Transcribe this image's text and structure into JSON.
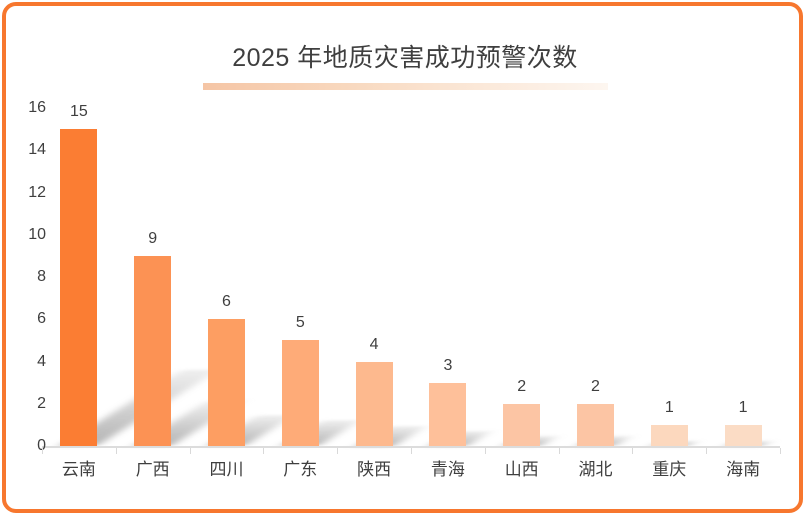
{
  "page": {
    "border_color": "#F7772E",
    "background_color": "#FFFFFF"
  },
  "chart_data": {
    "type": "bar",
    "title": "2025 年地质灾害成功预警次数",
    "categories": [
      "云南",
      "广西",
      "四川",
      "广东",
      "陕西",
      "青海",
      "山西",
      "湖北",
      "重庆",
      "海南"
    ],
    "values": [
      15,
      9,
      6,
      5,
      4,
      3,
      2,
      2,
      1,
      1
    ],
    "bar_colors": [
      "#FB7D33",
      "#FC9254",
      "#FD9E62",
      "#FEAB78",
      "#FDB98E",
      "#FEC09A",
      "#FCC5A4",
      "#FCC5A4",
      "#FCD8BE",
      "#FBDCC5"
    ],
    "data_labels": [
      "15",
      "9",
      "6",
      "5",
      "4",
      "3",
      "2",
      "2",
      "1",
      "1"
    ],
    "xlabel": "",
    "ylabel": "",
    "ylim": [
      0,
      16
    ],
    "yticks": [
      0,
      2,
      4,
      6,
      8,
      10,
      12,
      14,
      16
    ],
    "grid": false,
    "legend": false,
    "axis_color": "#D9D9D9",
    "label_color": "#3F3F3F",
    "bar_shadow_style": "perspective-upper-right",
    "title_underline_gradient": [
      "#F5C5A5",
      "#FDF6F0"
    ]
  }
}
